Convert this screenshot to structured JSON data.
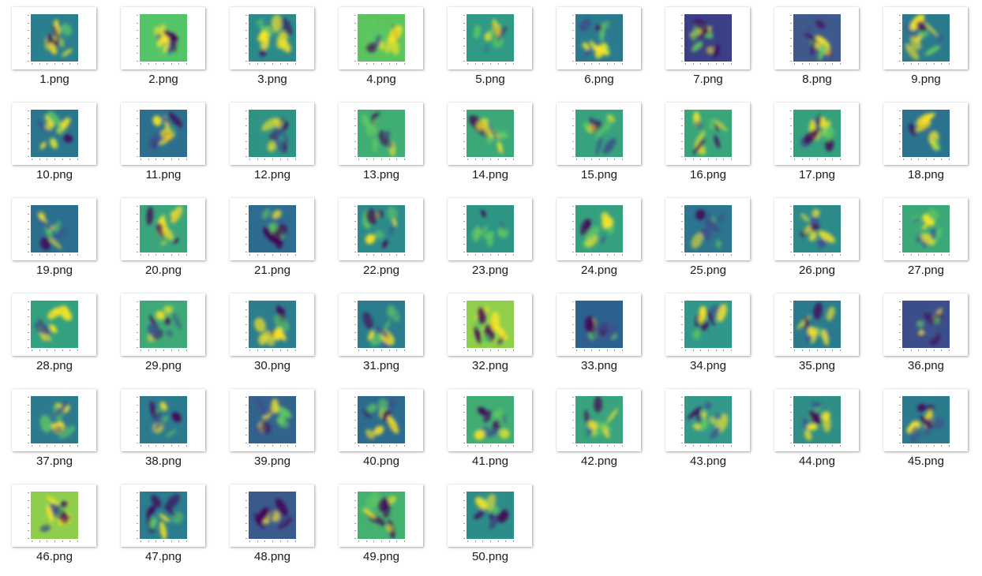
{
  "window": {
    "view": "large-icons"
  },
  "palette": {
    "colormap": "viridis",
    "colors": [
      "#440154",
      "#3b528b",
      "#21918c",
      "#5ec962",
      "#fde725"
    ]
  },
  "files": [
    {
      "name": "1.png"
    },
    {
      "name": "2.png"
    },
    {
      "name": "3.png"
    },
    {
      "name": "4.png"
    },
    {
      "name": "5.png"
    },
    {
      "name": "6.png"
    },
    {
      "name": "7.png"
    },
    {
      "name": "8.png"
    },
    {
      "name": "9.png"
    },
    {
      "name": "10.png"
    },
    {
      "name": "11.png"
    },
    {
      "name": "12.png"
    },
    {
      "name": "13.png"
    },
    {
      "name": "14.png"
    },
    {
      "name": "15.png"
    },
    {
      "name": "16.png"
    },
    {
      "name": "17.png"
    },
    {
      "name": "18.png"
    },
    {
      "name": "19.png"
    },
    {
      "name": "20.png"
    },
    {
      "name": "21.png"
    },
    {
      "name": "22.png"
    },
    {
      "name": "23.png"
    },
    {
      "name": "24.png"
    },
    {
      "name": "25.png"
    },
    {
      "name": "26.png"
    },
    {
      "name": "27.png"
    },
    {
      "name": "28.png"
    },
    {
      "name": "29.png"
    },
    {
      "name": "30.png"
    },
    {
      "name": "31.png"
    },
    {
      "name": "32.png"
    },
    {
      "name": "33.png"
    },
    {
      "name": "34.png"
    },
    {
      "name": "35.png"
    },
    {
      "name": "36.png"
    },
    {
      "name": "37.png"
    },
    {
      "name": "38.png"
    },
    {
      "name": "39.png"
    },
    {
      "name": "40.png"
    },
    {
      "name": "41.png"
    },
    {
      "name": "42.png"
    },
    {
      "name": "43.png"
    },
    {
      "name": "44.png"
    },
    {
      "name": "45.png"
    },
    {
      "name": "46.png"
    },
    {
      "name": "47.png"
    },
    {
      "name": "48.png"
    },
    {
      "name": "49.png"
    },
    {
      "name": "50.png"
    }
  ]
}
